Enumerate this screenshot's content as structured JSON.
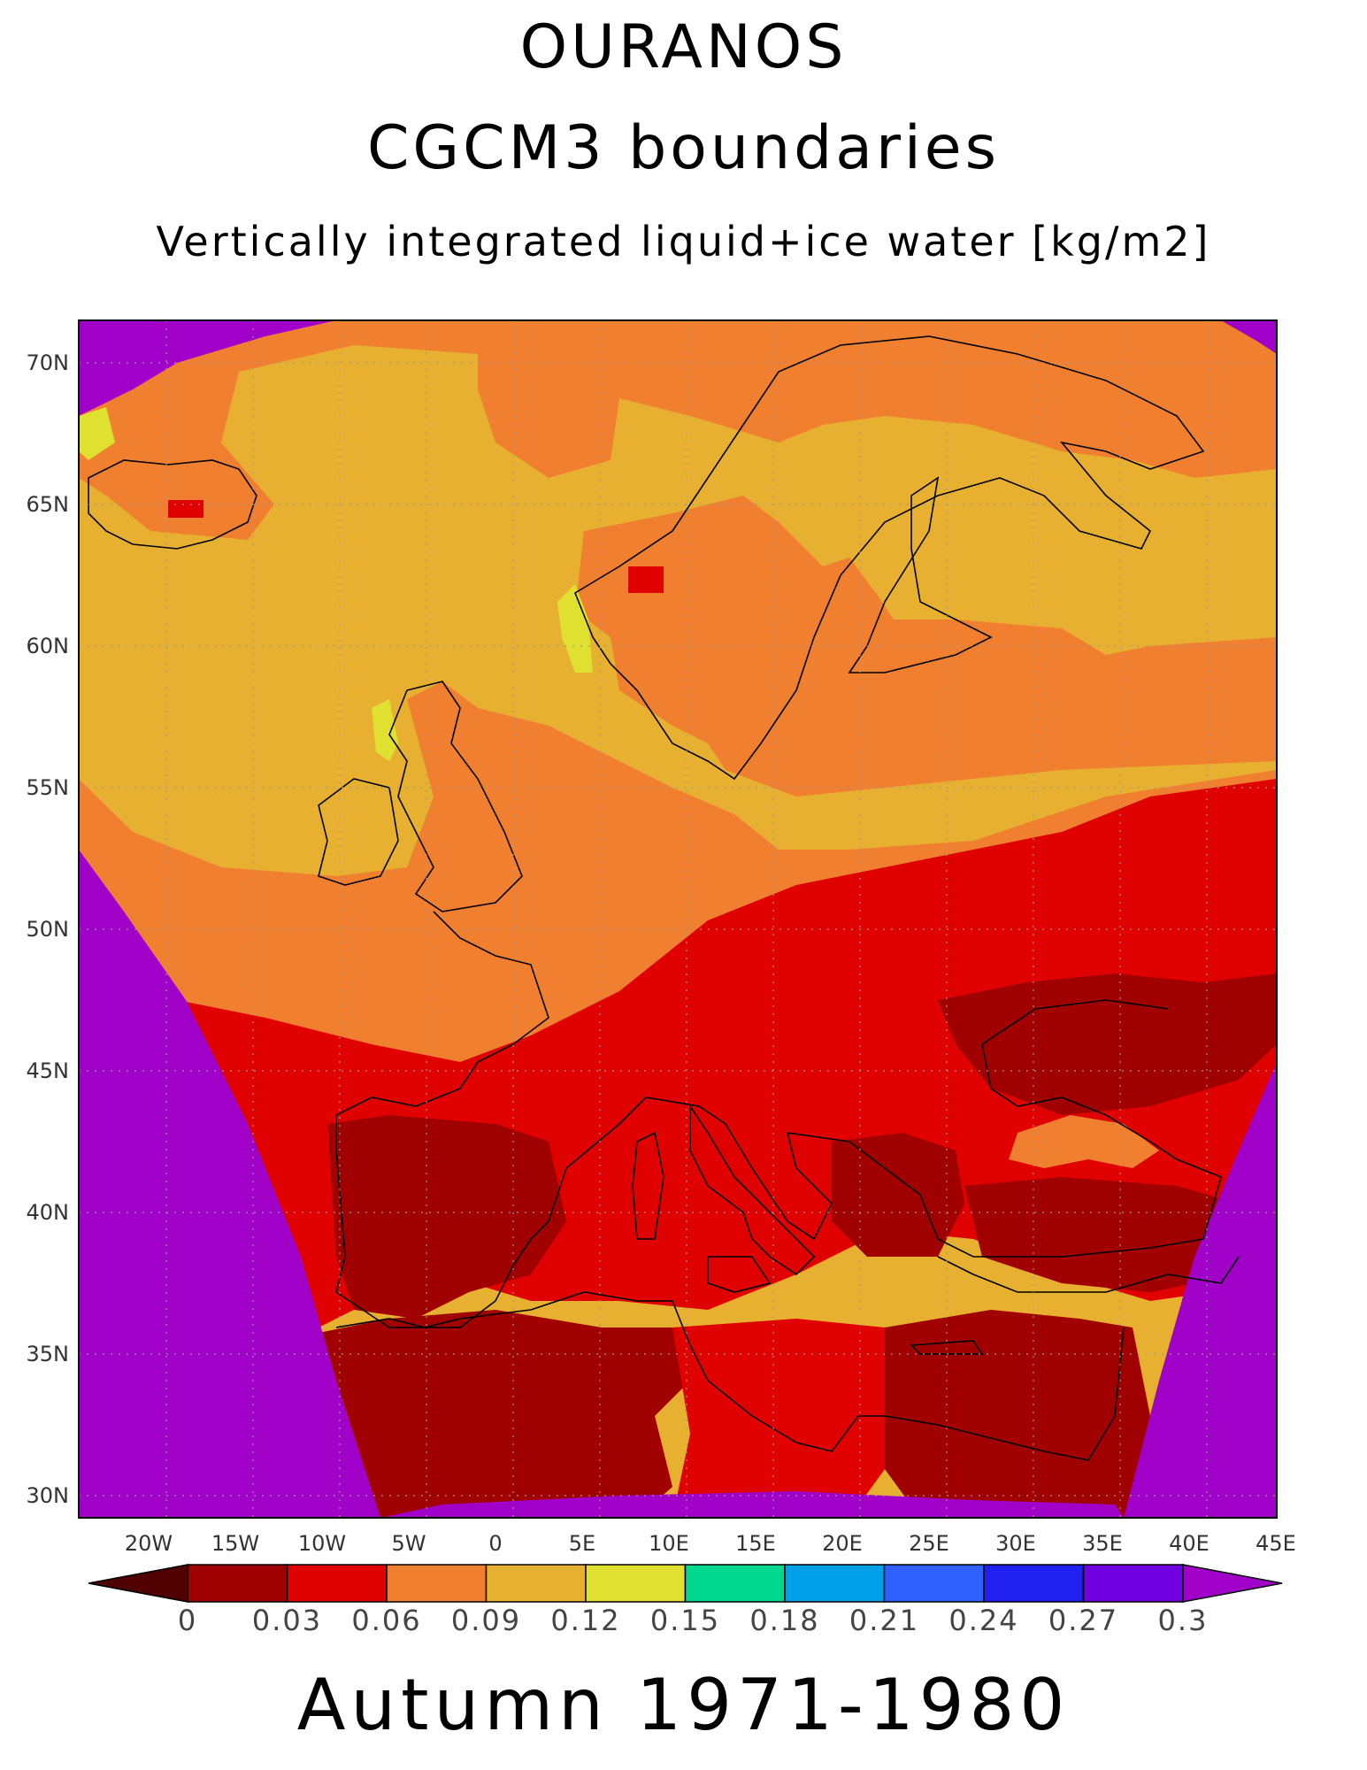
{
  "header": {
    "line1": "OURANOS",
    "line2": "CGCM3 boundaries",
    "line3": "Vertically integrated liquid+ice water [kg/m2]"
  },
  "footer": {
    "period": "Autumn 1971-1980"
  },
  "map": {
    "lon_range": [
      -24,
      45
    ],
    "lat_range": [
      29,
      71.5
    ],
    "lon_ticks": [
      "20W",
      "15W",
      "10W",
      "5W",
      "0",
      "5E",
      "10E",
      "15E",
      "20E",
      "25E",
      "30E",
      "35E",
      "40E",
      "45E"
    ],
    "lat_ticks": [
      "30N",
      "35N",
      "40N",
      "45N",
      "50N",
      "55N",
      "60N",
      "65N",
      "70N"
    ],
    "grid": "dotted"
  },
  "legend": {
    "labels": [
      "0",
      "0.03",
      "0.06",
      "0.09",
      "0.12",
      "0.15",
      "0.18",
      "0.21",
      "0.24",
      "0.27",
      "0.3"
    ],
    "colors": [
      "#a00000",
      "#e00000",
      "#f08030",
      "#e8b030",
      "#e0e030",
      "#00d890",
      "#00a0e8",
      "#3060ff",
      "#2020f0",
      "#7000e0"
    ],
    "under_color": "#500000",
    "over_color": "#a000c8"
  },
  "colors": {
    "outside_domain": "#a000c8",
    "ocean_north": "#e8b030",
    "land_mid": "#f08030",
    "south_land": "#e00000",
    "south_dry": "#a00000",
    "yellow_patch": "#e0e030"
  }
}
